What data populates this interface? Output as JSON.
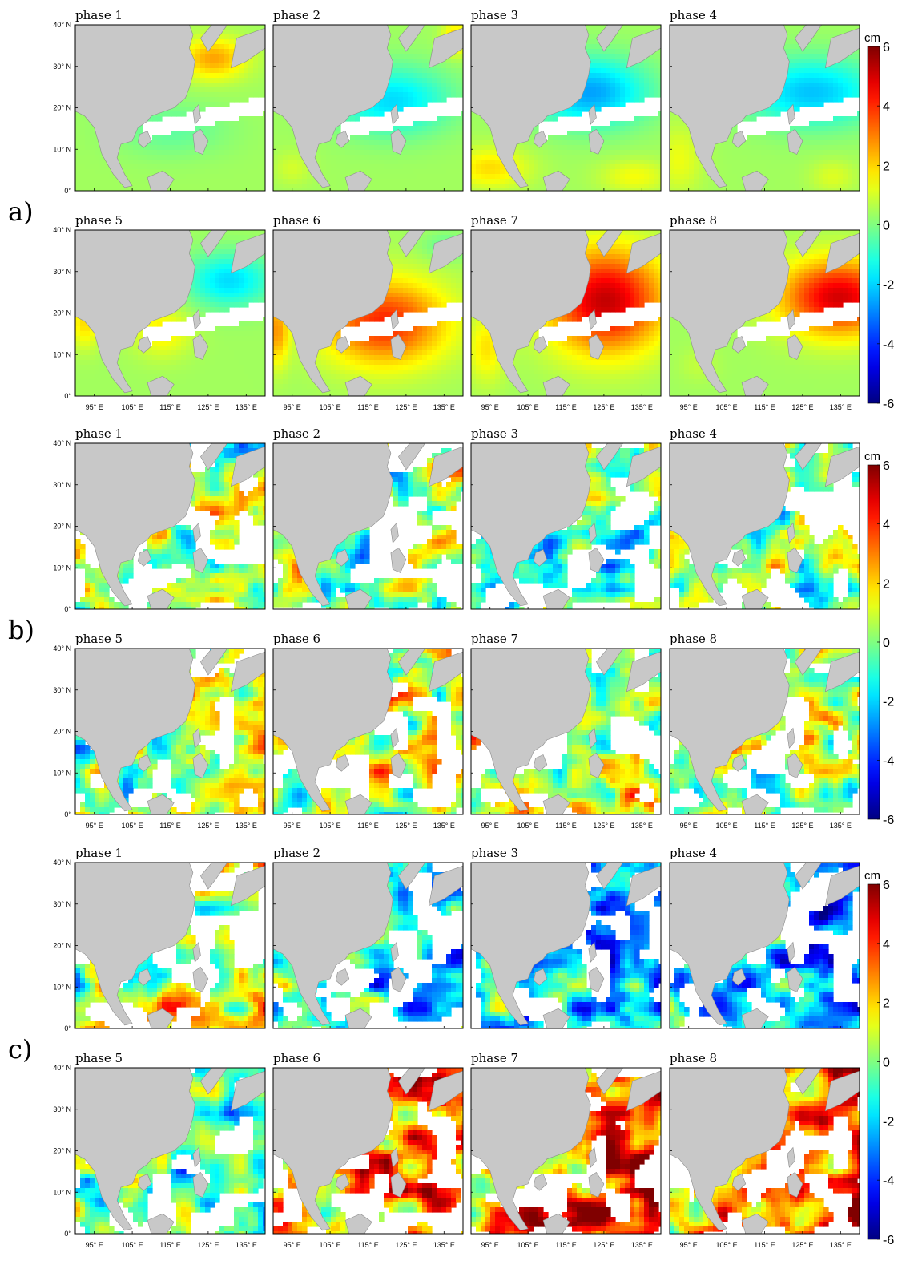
{
  "groups": [
    {
      "label": "a)",
      "field": "smooth",
      "colorbar": {
        "unit": "cm",
        "ticks": [
          "6",
          "4",
          "2",
          "0",
          "-2",
          "-4",
          "-6"
        ]
      },
      "rows": [
        {
          "panels": [
            {
              "title": "phase 1",
              "blobs": [
                [
                  0.72,
                  0.2,
                  0.17,
                  0.12,
                  2.2
                ],
                [
                  0.5,
                  0.62,
                  0.3,
                  0.16,
                  -0.8
                ],
                [
                  0.05,
                  0.4,
                  0.05,
                  0.1,
                  -0.3
                ]
              ]
            },
            {
              "title": "phase 2",
              "blobs": [
                [
                  0.62,
                  0.45,
                  0.3,
                  0.2,
                  -2.3
                ],
                [
                  0.95,
                  0.08,
                  0.07,
                  0.1,
                  1.8
                ],
                [
                  0.1,
                  0.85,
                  0.1,
                  0.1,
                  0.6
                ]
              ]
            },
            {
              "title": "phase 3",
              "blobs": [
                [
                  0.62,
                  0.4,
                  0.3,
                  0.2,
                  -3.0
                ],
                [
                  0.1,
                  0.85,
                  0.2,
                  0.12,
                  1.5
                ],
                [
                  0.85,
                  0.9,
                  0.18,
                  0.1,
                  1.0
                ]
              ]
            },
            {
              "title": "phase 4",
              "blobs": [
                [
                  0.74,
                  0.4,
                  0.35,
                  0.2,
                  -2.6
                ],
                [
                  0.05,
                  0.8,
                  0.12,
                  0.2,
                  0.9
                ],
                [
                  0.85,
                  0.9,
                  0.12,
                  0.1,
                  0.7
                ]
              ]
            }
          ]
        },
        {
          "panels": [
            {
              "title": "phase 5",
              "blobs": [
                [
                  0.8,
                  0.3,
                  0.22,
                  0.16,
                  -2.3
                ],
                [
                  0.45,
                  0.6,
                  0.15,
                  0.15,
                  1.3
                ],
                [
                  0.05,
                  0.55,
                  0.08,
                  0.15,
                  1.5
                ]
              ]
            },
            {
              "title": "phase 6",
              "blobs": [
                [
                  0.58,
                  0.55,
                  0.32,
                  0.25,
                  3.7
                ],
                [
                  0.02,
                  0.6,
                  0.06,
                  0.2,
                  2.2
                ],
                [
                  0.9,
                  0.1,
                  0.12,
                  0.08,
                  -0.8
                ]
              ]
            },
            {
              "title": "phase 7",
              "blobs": [
                [
                  0.7,
                  0.42,
                  0.3,
                  0.3,
                  4.8
                ],
                [
                  0.08,
                  0.7,
                  0.1,
                  0.2,
                  1.4
                ]
              ]
            },
            {
              "title": "phase 8",
              "blobs": [
                [
                  0.88,
                  0.4,
                  0.3,
                  0.22,
                  4.6
                ],
                [
                  0.15,
                  0.8,
                  0.1,
                  0.1,
                  0.4
                ]
              ]
            }
          ]
        }
      ]
    },
    {
      "label": "b)",
      "field": "noisy",
      "colorbar": {
        "unit": "cm",
        "ticks": [
          "6",
          "4",
          "2",
          "0",
          "-2",
          "-4",
          "-6"
        ]
      },
      "rows": [
        {
          "panels": [
            {
              "title": "phase 1",
              "bias": 0.0
            },
            {
              "title": "phase 2",
              "bias": 0.2
            },
            {
              "title": "phase 3",
              "bias": -0.1
            },
            {
              "title": "phase 4",
              "bias": 0.1
            }
          ]
        },
        {
          "panels": [
            {
              "title": "phase 5",
              "bias": 0.8
            },
            {
              "title": "phase 6",
              "bias": 1.0
            },
            {
              "title": "phase 7",
              "bias": 0.8
            },
            {
              "title": "phase 8",
              "bias": 0.1
            }
          ]
        }
      ]
    },
    {
      "label": "c)",
      "field": "noisy",
      "colorbar": {
        "unit": "cm",
        "ticks": [
          "6",
          "4",
          "2",
          "0",
          "-2",
          "-4",
          "-6"
        ]
      },
      "rows": [
        {
          "panels": [
            {
              "title": "phase 1",
              "bias": 1.0
            },
            {
              "title": "phase 2",
              "bias": -1.5
            },
            {
              "title": "phase 3",
              "bias": -2.5
            },
            {
              "title": "phase 4",
              "bias": -2.2
            }
          ]
        },
        {
          "panels": [
            {
              "title": "phase 5",
              "bias": -1.0
            },
            {
              "title": "phase 6",
              "bias": 2.6
            },
            {
              "title": "phase 7",
              "bias": 3.6
            },
            {
              "title": "phase 8",
              "bias": 3.0
            }
          ]
        }
      ]
    }
  ],
  "axes": {
    "lat_ticks": [
      "40° N",
      "30° N",
      "20° N",
      "10° N",
      "0°"
    ],
    "lon_ticks": [
      "95° E",
      "105° E",
      "115° E",
      "125° E",
      "135° E"
    ]
  },
  "map": {
    "land_color": "#c8c8c8",
    "coast_color": "#8c8c8c",
    "colormap": "jet",
    "range": [
      -6,
      6
    ]
  }
}
